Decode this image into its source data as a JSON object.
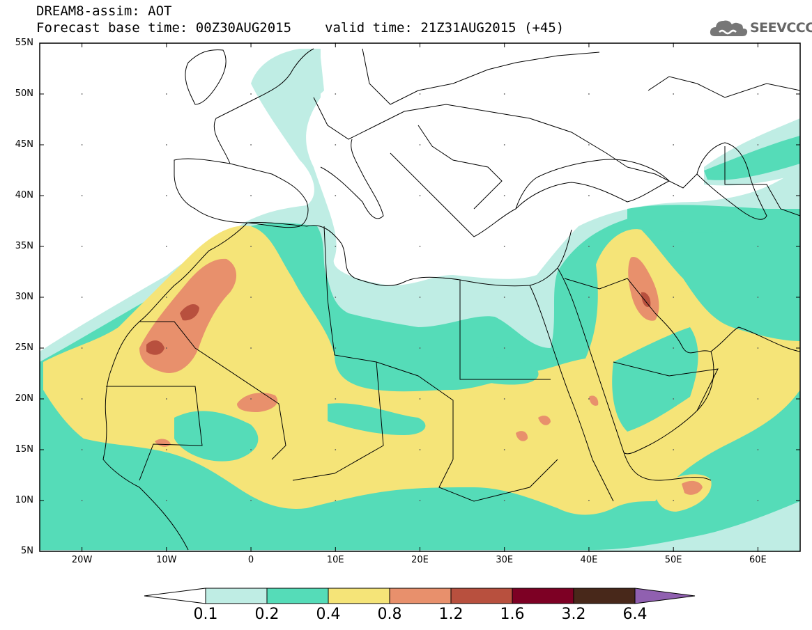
{
  "header": {
    "line1": "DREAM8-assim: AOT",
    "base_time": "Forecast base time: 00Z30AUG2015",
    "valid_time": "valid time: 21Z31AUG2015 (+45)"
  },
  "logo": {
    "text": "SEEVCCC",
    "icon": "cloud-icon"
  },
  "map": {
    "lat_labels": [
      "55N",
      "50N",
      "45N",
      "40N",
      "35N",
      "30N",
      "25N",
      "20N",
      "15N",
      "10N",
      "5N"
    ],
    "lon_labels": [
      "20W",
      "10W",
      "0",
      "10E",
      "20E",
      "30E",
      "40E",
      "50E",
      "60E"
    ],
    "lon_range": [
      -25,
      65
    ],
    "lat_range": [
      5,
      55
    ]
  },
  "colorbar": {
    "labels": [
      "0.1",
      "0.2",
      "0.4",
      "0.8",
      "1.2",
      "1.6",
      "3.2",
      "6.4"
    ],
    "colors": [
      "#ffffff",
      "#bfede4",
      "#55dcb8",
      "#f5e478",
      "#e8906c",
      "#b8503e",
      "#7d0024",
      "#48281a",
      "#9060b0"
    ]
  },
  "palette": {
    "c1": "#bfede4",
    "c2": "#55dcb8",
    "c3": "#f5e478",
    "c4": "#e8906c",
    "c5": "#b8503e",
    "border": "#000000"
  }
}
